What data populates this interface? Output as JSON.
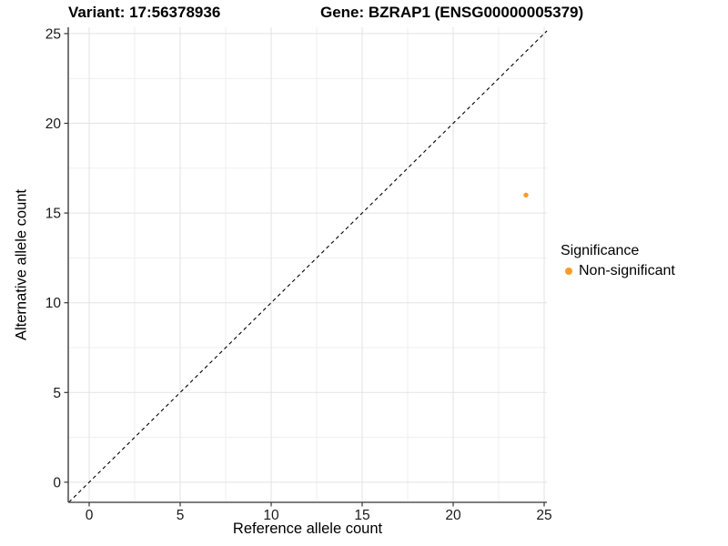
{
  "titles": {
    "variant": "Variant: 17:56378936",
    "gene": "Gene: BZRAP1 (ENSG00000005379)"
  },
  "chart_data": {
    "type": "scatter",
    "xlabel": "Reference allele count",
    "ylabel": "Alternative allele count",
    "xlim": [
      -1.15,
      25.15
    ],
    "ylim": [
      -1.12,
      25.35
    ],
    "x_major_ticks": [
      0,
      5,
      10,
      15,
      20,
      25
    ],
    "y_major_ticks": [
      0,
      5,
      10,
      15,
      20,
      25
    ],
    "x_minor_ticks": [
      2.5,
      7.5,
      12.5,
      17.5,
      22.5
    ],
    "y_minor_ticks": [
      2.5,
      7.5,
      12.5,
      17.5,
      22.5
    ],
    "grid": true,
    "identity_line": {
      "slope": 1,
      "intercept": 0,
      "style": "dashed",
      "color": "#000000"
    },
    "series": [
      {
        "name": "Non-significant",
        "color": "#F99B2B",
        "points": [
          {
            "x": 24,
            "y": 16
          }
        ]
      }
    ]
  },
  "legend": {
    "title": "Significance",
    "items": [
      {
        "label": "Non-significant",
        "color": "#F99B2B"
      }
    ]
  },
  "colors": {
    "point_orange": "#F99B2B",
    "axis_line": "#555555",
    "grid_major": "#e3e3e3",
    "grid_minor": "#efefef"
  }
}
